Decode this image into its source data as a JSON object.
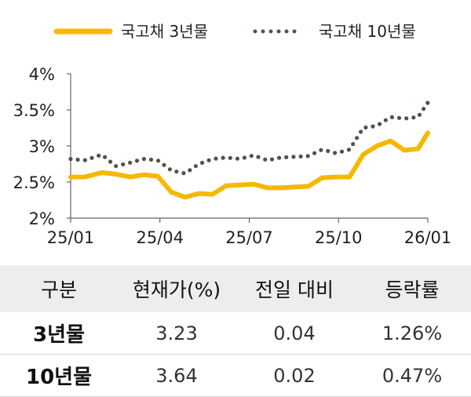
{
  "chart_data": {
    "type": "line",
    "x_ticks": [
      "25/01",
      "25/04",
      "25/07",
      "25/10",
      "26/01"
    ],
    "y_ticks": [
      "4%",
      "3.5%",
      "3%",
      "2.5%",
      "2%"
    ],
    "ylim": [
      2.0,
      4.0
    ],
    "legend_position": "top",
    "series": [
      {
        "name": "국고채 3년물",
        "style": "solid",
        "color": "#f6b800",
        "x": [
          "2025-01-02",
          "2025-01-16",
          "2025-02-03",
          "2025-02-17",
          "2025-03-04",
          "2025-03-18",
          "2025-04-01",
          "2025-04-15",
          "2025-04-29",
          "2025-05-13",
          "2025-05-27",
          "2025-06-10",
          "2025-06-24",
          "2025-07-08",
          "2025-07-22",
          "2025-08-05",
          "2025-08-19",
          "2025-09-02",
          "2025-09-16",
          "2025-09-30",
          "2025-10-14",
          "2025-10-28",
          "2025-11-11",
          "2025-11-25",
          "2025-12-09",
          "2025-12-23",
          "2026-01-02"
        ],
        "values": [
          2.57,
          2.57,
          2.63,
          2.61,
          2.57,
          2.6,
          2.58,
          2.36,
          2.29,
          2.34,
          2.33,
          2.45,
          2.46,
          2.47,
          2.42,
          2.42,
          2.43,
          2.44,
          2.56,
          2.57,
          2.57,
          2.88,
          3.0,
          3.07,
          2.94,
          2.96,
          3.18
        ]
      },
      {
        "name": "국고채 10년물",
        "style": "dotted",
        "color": "#5a4f45",
        "x": [
          "2025-01-02",
          "2025-01-16",
          "2025-02-03",
          "2025-02-17",
          "2025-03-04",
          "2025-03-18",
          "2025-04-01",
          "2025-04-15",
          "2025-04-29",
          "2025-05-13",
          "2025-05-27",
          "2025-06-10",
          "2025-06-24",
          "2025-07-08",
          "2025-07-22",
          "2025-08-05",
          "2025-08-19",
          "2025-09-02",
          "2025-09-16",
          "2025-09-30",
          "2025-10-14",
          "2025-10-28",
          "2025-11-11",
          "2025-11-25",
          "2025-12-09",
          "2025-12-23",
          "2026-01-02"
        ],
        "values": [
          2.82,
          2.8,
          2.88,
          2.72,
          2.77,
          2.82,
          2.8,
          2.66,
          2.62,
          2.75,
          2.82,
          2.84,
          2.82,
          2.87,
          2.8,
          2.84,
          2.85,
          2.86,
          2.95,
          2.9,
          2.95,
          3.25,
          3.28,
          3.4,
          3.38,
          3.4,
          3.6
        ]
      }
    ]
  },
  "table": {
    "headers": [
      "구분",
      "현재가(%)",
      "전일 대비",
      "등락률"
    ],
    "rows": [
      {
        "label": "3년물",
        "price": "3.23",
        "change": "0.04",
        "rate": "1.26%"
      },
      {
        "label": "10년물",
        "price": "3.64",
        "change": "0.02",
        "rate": "0.47%"
      }
    ]
  }
}
